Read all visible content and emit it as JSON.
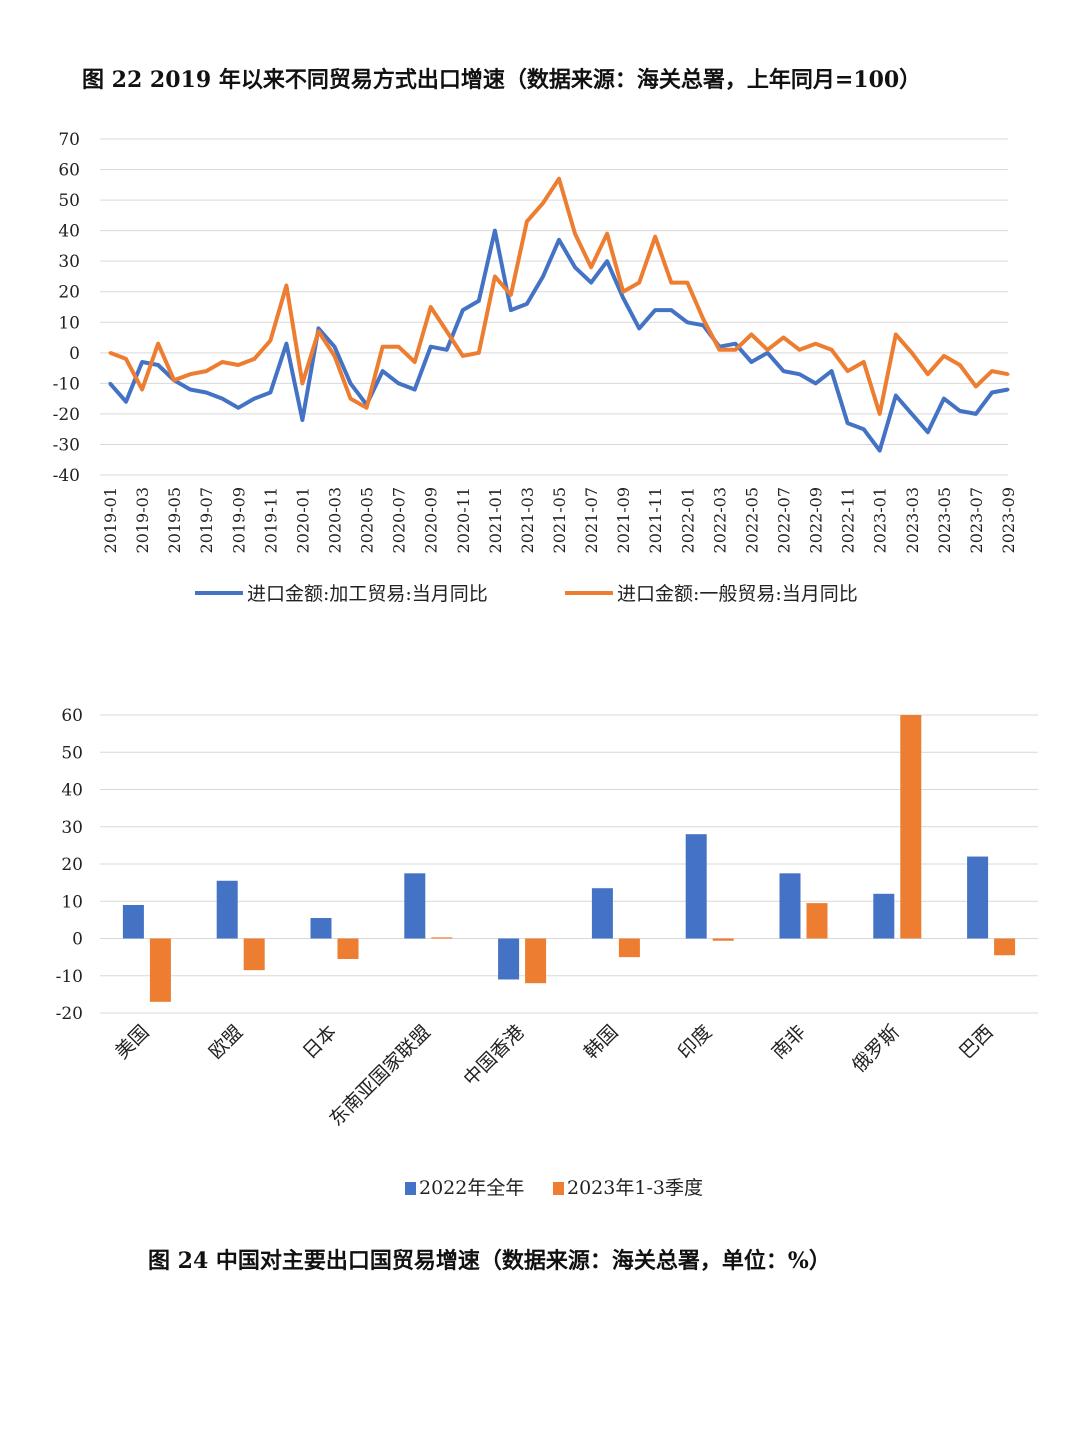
{
  "chart_data": [
    {
      "type": "line",
      "title": "图 22 2019 年以来不同贸易方式出口增速（数据来源：海关总署，上年同月=100）",
      "ylim": [
        -40,
        70
      ],
      "yticks": [
        70,
        60,
        50,
        40,
        30,
        20,
        10,
        0,
        -10,
        -20,
        -30,
        -40
      ],
      "x": [
        "2019-01",
        "2019-02",
        "2019-03",
        "2019-04",
        "2019-05",
        "2019-06",
        "2019-07",
        "2019-08",
        "2019-09",
        "2019-10",
        "2019-11",
        "2019-12",
        "2020-01",
        "2020-02",
        "2020-03",
        "2020-04",
        "2020-05",
        "2020-06",
        "2020-07",
        "2020-08",
        "2020-09",
        "2020-10",
        "2020-11",
        "2020-12",
        "2021-01",
        "2021-02",
        "2021-03",
        "2021-04",
        "2021-05",
        "2021-06",
        "2021-07",
        "2021-08",
        "2021-09",
        "2021-10",
        "2021-11",
        "2021-12",
        "2022-01",
        "2022-02",
        "2022-03",
        "2022-04",
        "2022-05",
        "2022-06",
        "2022-07",
        "2022-08",
        "2022-09",
        "2022-10",
        "2022-11",
        "2022-12",
        "2023-01",
        "2023-02",
        "2023-03",
        "2023-04",
        "2023-05",
        "2023-06",
        "2023-07",
        "2023-08",
        "2023-09"
      ],
      "xtick_labels": [
        "2019-01",
        "2019-03",
        "2019-05",
        "2019-07",
        "2019-09",
        "2019-11",
        "2020-01",
        "2020-03",
        "2020-05",
        "2020-07",
        "2020-09",
        "2020-11",
        "2021-01",
        "2021-03",
        "2021-05",
        "2021-07",
        "2021-09",
        "2021-11",
        "2022-01",
        "2022-03",
        "2022-05",
        "2022-07",
        "2022-09",
        "2022-11",
        "2023-01",
        "2023-03",
        "2023-05",
        "2023-07",
        "2023-09"
      ],
      "grid": true,
      "legend_position": "bottom",
      "series": [
        {
          "name": "进口金额:加工贸易:当月同比",
          "color": "#4472C4",
          "values": [
            -10,
            -16,
            -3,
            -4,
            -9,
            -12,
            -13,
            -15,
            -18,
            -15,
            -13,
            3,
            -22,
            8,
            2,
            -10,
            -17,
            -6,
            -10,
            -12,
            2,
            1,
            14,
            17,
            40,
            14,
            16,
            25,
            37,
            28,
            23,
            30,
            18,
            8,
            14,
            14,
            10,
            9,
            2,
            3,
            -3,
            0,
            -6,
            -7,
            -10,
            -6,
            -23,
            -25,
            -32,
            -14,
            -20,
            -26,
            -15,
            -19,
            -20,
            -13,
            -12
          ]
        },
        {
          "name": "进口金额:一般贸易:当月同比",
          "color": "#ED7D31",
          "values": [
            0,
            -2,
            -12,
            3,
            -9,
            -7,
            -6,
            -3,
            -4,
            -2,
            4,
            22,
            -10,
            7,
            -1,
            -15,
            -18,
            2,
            2,
            -3,
            15,
            7,
            -1,
            0,
            25,
            19,
            43,
            49,
            57,
            39,
            28,
            39,
            20,
            23,
            38,
            23,
            23,
            11,
            1,
            1,
            6,
            1,
            5,
            1,
            3,
            1,
            -6,
            -3,
            -20,
            6,
            0,
            -7,
            -1,
            -4,
            -11,
            -6,
            -7
          ]
        }
      ]
    },
    {
      "type": "bar",
      "title": "图 24  中国对主要出口国贸易增速（数据来源：海关总署，单位：%）",
      "ylim": [
        -20,
        60
      ],
      "yticks": [
        60,
        50,
        40,
        30,
        20,
        10,
        0,
        -10,
        -20
      ],
      "categories": [
        "美国",
        "欧盟",
        "日本",
        "东南亚国家联盟",
        "中国香港",
        "韩国",
        "印度",
        "南非",
        "俄罗斯",
        "巴西"
      ],
      "grid": true,
      "legend_position": "bottom",
      "series": [
        {
          "name": "2022年全年",
          "color": "#4472C4",
          "values": [
            9,
            15.5,
            5.5,
            17.5,
            -11,
            13.5,
            28,
            17.5,
            12,
            22
          ]
        },
        {
          "name": "2023年1-3季度",
          "color": "#ED7D31",
          "values": [
            -17,
            -8.5,
            -5.5,
            0.3,
            -12,
            -5,
            -0.6,
            9.5,
            60,
            -4.5
          ]
        }
      ]
    }
  ]
}
